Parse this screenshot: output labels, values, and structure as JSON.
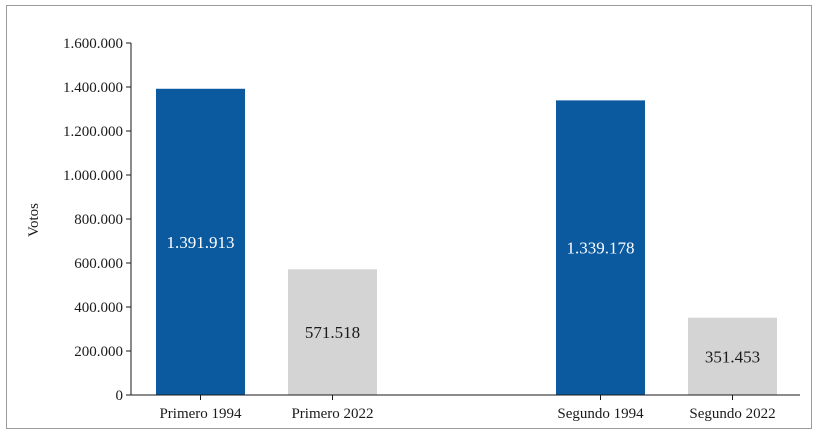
{
  "chart_data": {
    "type": "bar",
    "title": "",
    "xlabel": "",
    "ylabel": "Votos",
    "ylim": [
      0,
      1600000
    ],
    "yticks": [
      0,
      200000,
      400000,
      600000,
      800000,
      1000000,
      1200000,
      1400000,
      1600000
    ],
    "ytick_labels": [
      "0",
      "200.000",
      "400.000",
      "600.000",
      "800.000",
      "1.000.000",
      "1.200.000",
      "1.400.000",
      "1.600.000"
    ],
    "categories": [
      "Primero 1994",
      "Primero 2022",
      "Segundo 1994",
      "Segundo 2022"
    ],
    "values": [
      1391913,
      571518,
      1339178,
      351453
    ],
    "data_labels": [
      "1.391.913",
      "571.518",
      "1.339.178",
      "351.453"
    ],
    "colors": [
      "#0b5aa0",
      "#d4d4d4",
      "#0b5aa0",
      "#d4d4d4"
    ],
    "label_colors": [
      "#ffffff",
      "#1a1a1a",
      "#ffffff",
      "#1a1a1a"
    ],
    "grid": false,
    "legend": "none"
  }
}
